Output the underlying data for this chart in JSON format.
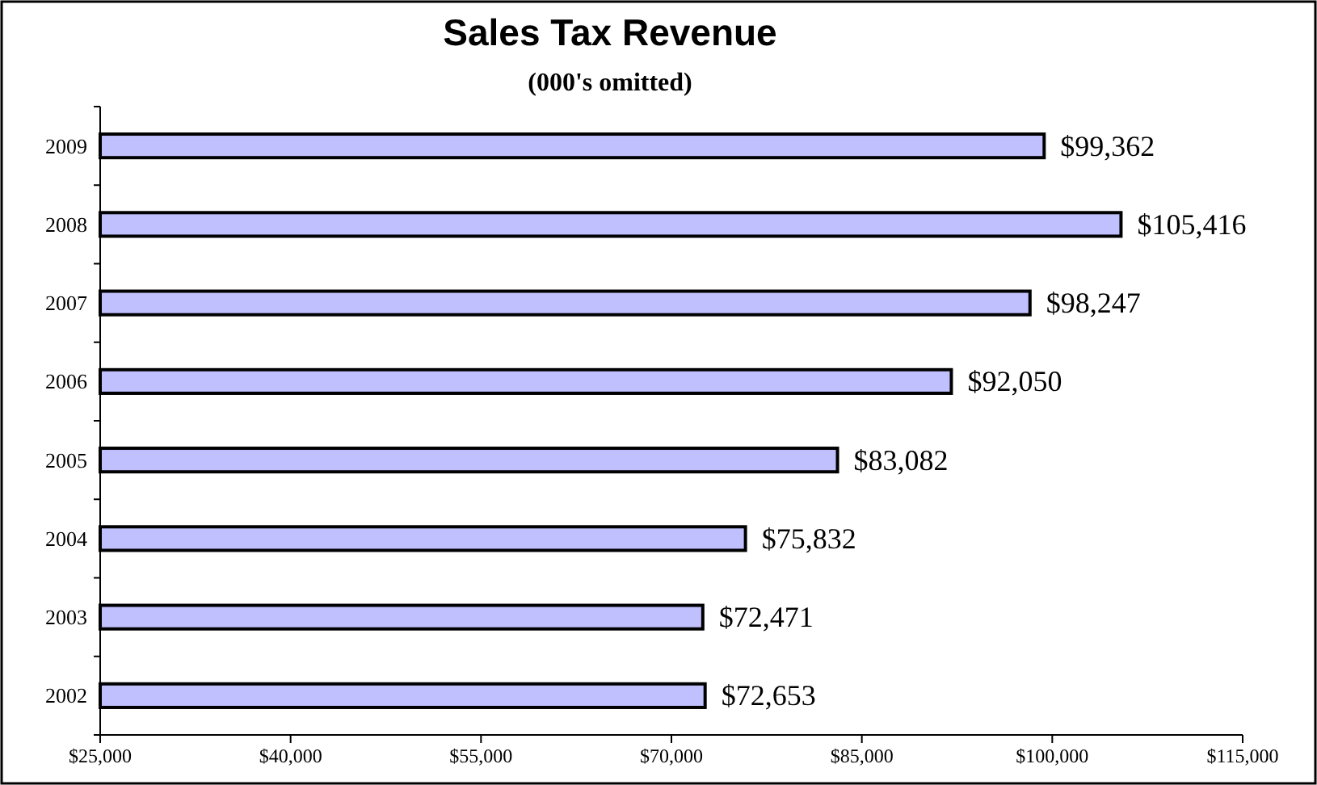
{
  "chart_data": {
    "type": "bar",
    "orientation": "horizontal",
    "title": "Sales Tax Revenue",
    "subtitle": "(000's omitted)",
    "categories": [
      "2009",
      "2008",
      "2007",
      "2006",
      "2005",
      "2004",
      "2003",
      "2002"
    ],
    "values": [
      99362,
      105416,
      98247,
      92050,
      83082,
      75832,
      72471,
      72653
    ],
    "value_labels": [
      "$99,362",
      "$105,416",
      "$98,247",
      "$92,050",
      "$83,082",
      "$75,832",
      "$72,471",
      "$72,653"
    ],
    "color": "#c0c0ff",
    "xlim": [
      25000,
      115000
    ],
    "xticks": [
      {
        "value": 25000,
        "label": "$25,000"
      },
      {
        "value": 40000,
        "label": "$40,000"
      },
      {
        "value": 55000,
        "label": "$55,000"
      },
      {
        "value": 70000,
        "label": "$70,000"
      },
      {
        "value": 85000,
        "label": "$85,000"
      },
      {
        "value": 100000,
        "label": "$100,000"
      },
      {
        "value": 115000,
        "label": "$115,000"
      }
    ],
    "grid": false
  }
}
